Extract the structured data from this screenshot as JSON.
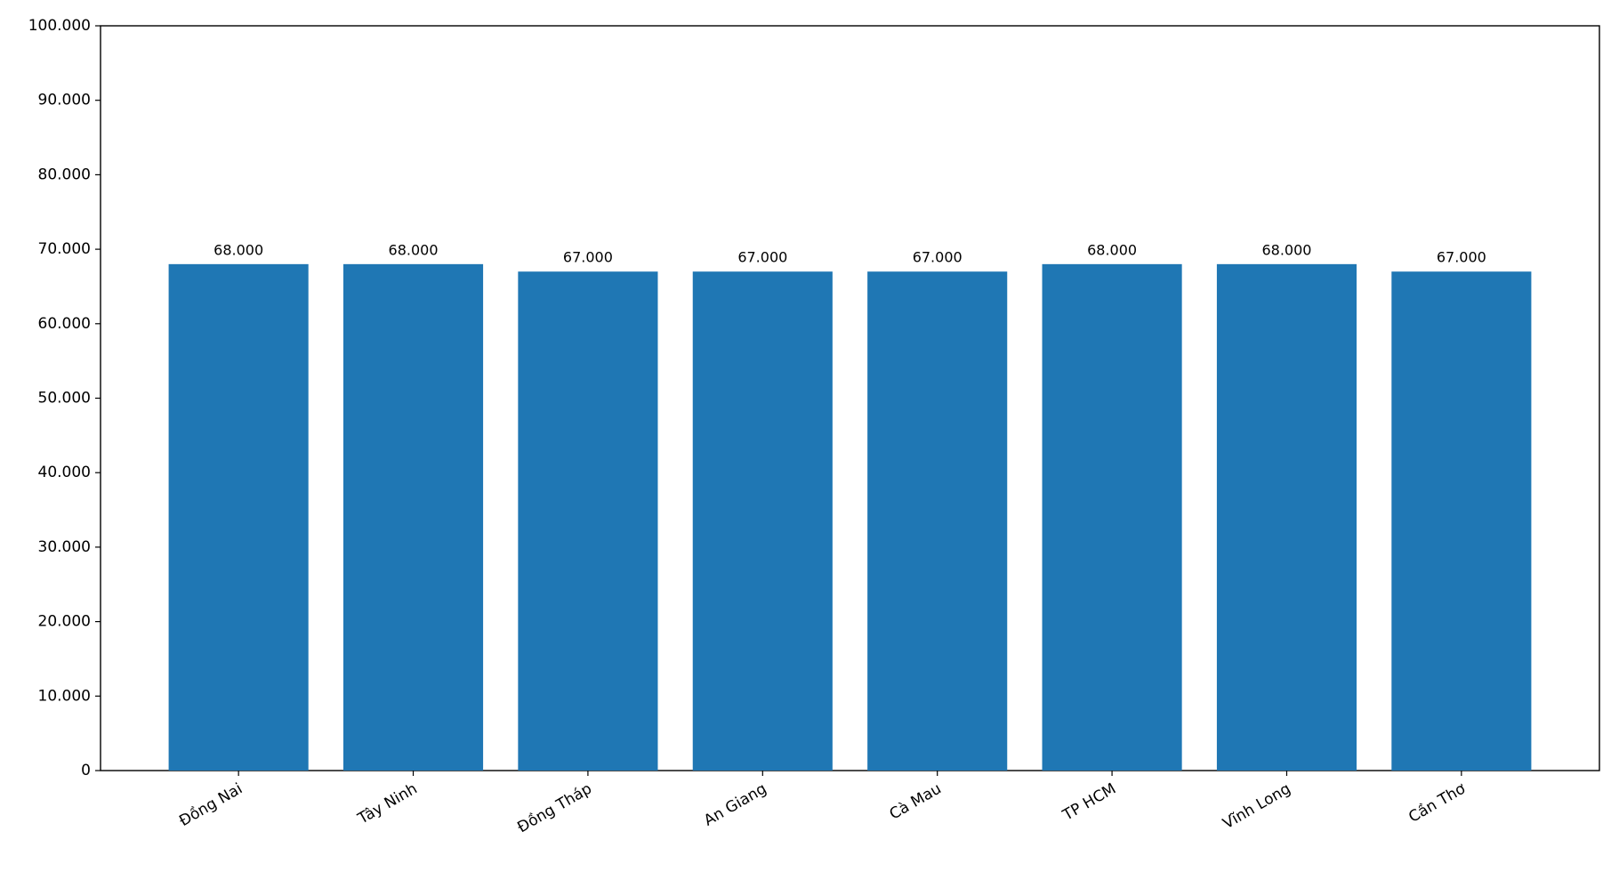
{
  "chart_data": {
    "type": "bar",
    "categories": [
      "Đồng Nai",
      "Tây Ninh",
      "Đồng Tháp",
      "An Giang",
      "Cà Mau",
      "TP HCM",
      "Vĩnh Long",
      "Cần Thơ"
    ],
    "values": [
      68000,
      68000,
      67000,
      67000,
      67000,
      68000,
      68000,
      67000
    ],
    "value_labels": [
      "68.000",
      "68.000",
      "67.000",
      "67.000",
      "67.000",
      "68.000",
      "68.000",
      "67.000"
    ],
    "color": "#1f77b4",
    "ylim": [
      0,
      100000
    ],
    "yticks": [
      0,
      {
        "value": 10000,
        "label": "10.000"
      },
      {
        "value": 20000,
        "label": "20.000"
      },
      {
        "value": 30000,
        "label": "30.000"
      },
      {
        "value": 40000,
        "label": "40.000"
      },
      {
        "value": 50000,
        "label": "50.000"
      },
      {
        "value": 60000,
        "label": "60.000"
      },
      {
        "value": 70000,
        "label": "70.000"
      },
      {
        "value": 80000,
        "label": "80.000"
      },
      {
        "value": 90000,
        "label": "90.000"
      },
      {
        "value": 100000,
        "label": "100.000"
      }
    ],
    "grid": false
  }
}
